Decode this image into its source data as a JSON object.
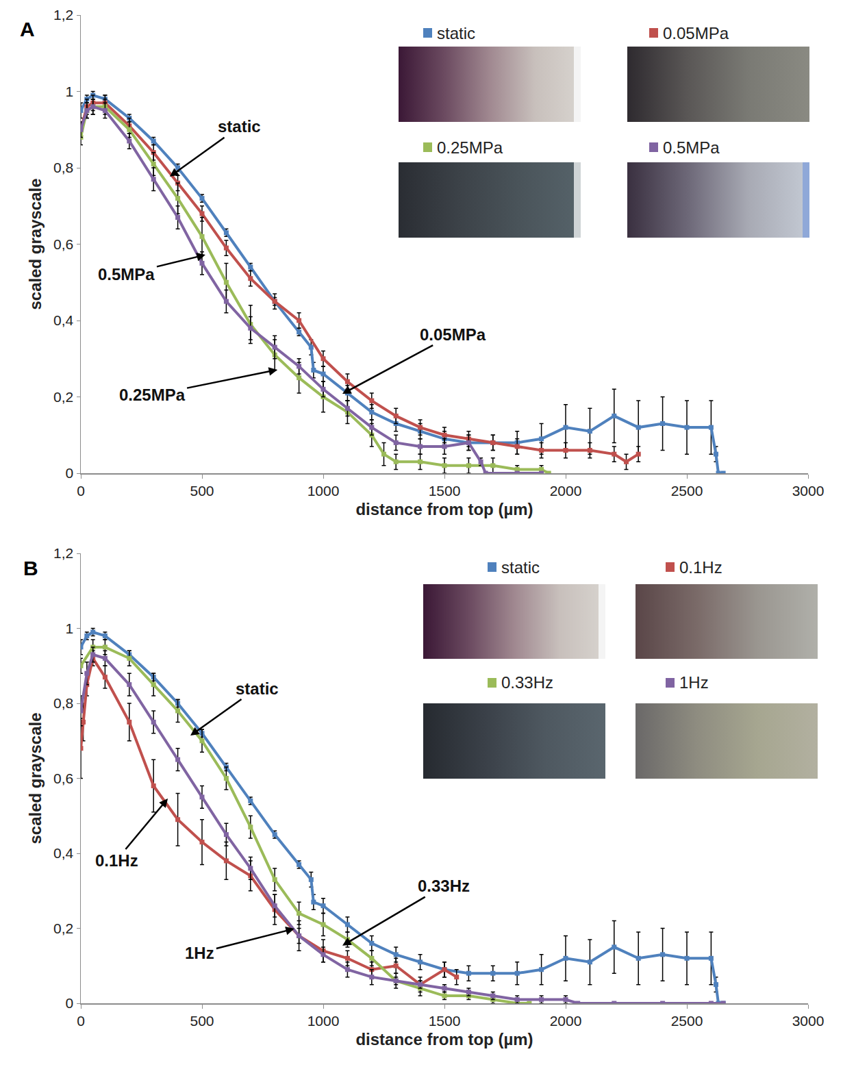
{
  "chart_data": [
    {
      "type": "line",
      "panel": "A",
      "x_label": "distance from top (µm)",
      "y_label": "scaled grayscale",
      "xlim": [
        0,
        3000
      ],
      "xticks": [
        0,
        500,
        1000,
        1500,
        2000,
        2500,
        3000
      ],
      "ylim": [
        0,
        1.2
      ],
      "yticks": [
        0,
        {
          "value": 0.2,
          "label": "0,2"
        },
        {
          "value": 0.4,
          "label": "0,4"
        },
        {
          "value": 0.6,
          "label": "0,6"
        },
        {
          "value": 0.8,
          "label": "0,8"
        },
        1,
        {
          "value": 1.2,
          "label": "1,2"
        }
      ],
      "grid": false,
      "legend": "top right",
      "series": [
        {
          "name": "static",
          "color": "#4f81bd",
          "marker": "square",
          "line_style": "solid",
          "x": [
            0,
            25,
            50,
            100,
            200,
            300,
            400,
            500,
            600,
            700,
            800,
            900,
            950,
            960,
            1000,
            1100,
            1200,
            1300,
            1400,
            1500,
            1600,
            1700,
            1800,
            1900,
            2000,
            2100,
            2200,
            2300,
            2400,
            2500,
            2600,
            2620,
            2630,
            2650
          ],
          "values": [
            0.95,
            0.98,
            0.99,
            0.98,
            0.93,
            0.87,
            0.8,
            0.72,
            0.63,
            0.54,
            0.45,
            0.37,
            0.33,
            0.27,
            0.26,
            0.21,
            0.16,
            0.13,
            0.11,
            0.09,
            0.08,
            0.08,
            0.08,
            0.09,
            0.12,
            0.11,
            0.15,
            0.12,
            0.13,
            0.12,
            0.12,
            0.05,
            0,
            0
          ],
          "errors": [
            0.02,
            0.01,
            0.01,
            0.01,
            0.01,
            0.01,
            0.01,
            0.01,
            0.01,
            0.01,
            0.01,
            0.01,
            0.02,
            0.02,
            0.02,
            0.02,
            0.02,
            0.02,
            0.02,
            0.02,
            0.02,
            0.02,
            0.03,
            0.04,
            0.06,
            0.06,
            0.07,
            0.07,
            0.07,
            0.07,
            0.07,
            0.02,
            0,
            0
          ]
        },
        {
          "name": "0.05MPa",
          "color": "#c0504d",
          "marker": "square",
          "line_style": "solid",
          "x": [
            0,
            25,
            50,
            100,
            200,
            300,
            400,
            500,
            600,
            700,
            800,
            900,
            1000,
            1100,
            1200,
            1300,
            1400,
            1500,
            1600,
            1700,
            1800,
            1900,
            2000,
            2100,
            2200,
            2250,
            2300
          ],
          "values": [
            0.9,
            0.96,
            0.97,
            0.97,
            0.91,
            0.84,
            0.76,
            0.68,
            0.59,
            0.51,
            0.45,
            0.4,
            0.3,
            0.24,
            0.19,
            0.15,
            0.12,
            0.1,
            0.09,
            0.08,
            0.07,
            0.06,
            0.06,
            0.06,
            0.05,
            0.03,
            0.05
          ],
          "errors": [
            0.02,
            0.02,
            0.02,
            0.02,
            0.02,
            0.02,
            0.02,
            0.02,
            0.02,
            0.02,
            0.02,
            0.02,
            0.02,
            0.02,
            0.02,
            0.02,
            0.02,
            0.02,
            0.02,
            0.02,
            0.02,
            0.02,
            0.02,
            0.02,
            0.02,
            0.02,
            0.02
          ]
        },
        {
          "name": "0.25MPa",
          "color": "#9bbb59",
          "marker": "square",
          "line_style": "solid",
          "x": [
            0,
            25,
            50,
            100,
            200,
            300,
            400,
            500,
            600,
            700,
            800,
            900,
            1000,
            1100,
            1200,
            1250,
            1300,
            1400,
            1500,
            1600,
            1700,
            1800,
            1900,
            1930
          ],
          "values": [
            0.88,
            0.95,
            0.96,
            0.96,
            0.9,
            0.81,
            0.72,
            0.62,
            0.5,
            0.39,
            0.31,
            0.25,
            0.2,
            0.16,
            0.1,
            0.05,
            0.03,
            0.03,
            0.02,
            0.02,
            0.02,
            0.01,
            0.01,
            0
          ],
          "errors": [
            0.02,
            0.02,
            0.02,
            0.02,
            0.02,
            0.03,
            0.04,
            0.05,
            0.05,
            0.05,
            0.04,
            0.04,
            0.04,
            0.03,
            0.03,
            0.03,
            0.02,
            0.02,
            0.02,
            0.02,
            0.02,
            0.01,
            0.01,
            0
          ]
        },
        {
          "name": "0.5MPa",
          "color": "#8064a2",
          "marker": "square",
          "line_style": "solid",
          "x": [
            0,
            25,
            50,
            100,
            200,
            300,
            400,
            500,
            600,
            700,
            800,
            900,
            1000,
            1100,
            1200,
            1300,
            1400,
            1500,
            1600,
            1650,
            1670,
            1800,
            1900
          ],
          "values": [
            0.9,
            0.95,
            0.96,
            0.95,
            0.87,
            0.77,
            0.67,
            0.55,
            0.45,
            0.38,
            0.33,
            0.28,
            0.22,
            0.17,
            0.12,
            0.08,
            0.07,
            0.07,
            0.08,
            0.03,
            0,
            0,
            0
          ],
          "errors": [
            0.02,
            0.02,
            0.02,
            0.02,
            0.02,
            0.03,
            0.03,
            0.03,
            0.03,
            0.03,
            0.03,
            0.02,
            0.02,
            0.02,
            0.02,
            0.02,
            0.02,
            0.02,
            0.02,
            0.01,
            0,
            0,
            0
          ]
        }
      ],
      "annotations": [
        {
          "text": "static",
          "x": 367,
          "y": 0.777
        },
        {
          "text": "0.5MPa",
          "x": 514,
          "y": 0.572
        },
        {
          "text": "0.25MPa",
          "x": 811,
          "y": 0.271
        },
        {
          "text": "0.05MPa",
          "x": 1079,
          "y": 0.208
        }
      ]
    },
    {
      "type": "line",
      "panel": "B",
      "x_label": "distance from top (µm)",
      "y_label": "scaled grayscale",
      "xlim": [
        0,
        3000
      ],
      "xticks": [
        0,
        500,
        1000,
        1500,
        2000,
        2500,
        3000
      ],
      "ylim": [
        0,
        1.2
      ],
      "yticks": [
        0,
        {
          "value": 0.2,
          "label": "0,2"
        },
        {
          "value": 0.4,
          "label": "0,4"
        },
        {
          "value": 0.6,
          "label": "0,6"
        },
        {
          "value": 0.8,
          "label": "0,8"
        },
        1,
        {
          "value": 1.2,
          "label": "1,2"
        }
      ],
      "grid": false,
      "legend": "top right",
      "series": [
        {
          "name": "static",
          "color": "#4f81bd",
          "marker": "square",
          "line_style": "solid",
          "x": [
            0,
            25,
            50,
            100,
            200,
            300,
            400,
            500,
            600,
            700,
            800,
            900,
            950,
            960,
            1000,
            1100,
            1200,
            1300,
            1400,
            1500,
            1600,
            1700,
            1800,
            1900,
            2000,
            2100,
            2200,
            2300,
            2400,
            2500,
            2600,
            2620,
            2630,
            2650
          ],
          "values": [
            0.95,
            0.98,
            0.99,
            0.98,
            0.93,
            0.87,
            0.8,
            0.72,
            0.63,
            0.54,
            0.45,
            0.37,
            0.33,
            0.27,
            0.26,
            0.21,
            0.16,
            0.13,
            0.11,
            0.09,
            0.08,
            0.08,
            0.08,
            0.09,
            0.12,
            0.11,
            0.15,
            0.12,
            0.13,
            0.12,
            0.12,
            0.05,
            0,
            0
          ],
          "errors": [
            0.02,
            0.01,
            0.01,
            0.01,
            0.01,
            0.01,
            0.01,
            0.01,
            0.01,
            0.01,
            0.01,
            0.01,
            0.02,
            0.02,
            0.02,
            0.02,
            0.02,
            0.02,
            0.02,
            0.02,
            0.02,
            0.02,
            0.03,
            0.04,
            0.06,
            0.06,
            0.07,
            0.07,
            0.07,
            0.07,
            0.07,
            0.02,
            0,
            0
          ]
        },
        {
          "name": "0.1Hz",
          "color": "#c0504d",
          "marker": "square",
          "line_style": "solid",
          "x": [
            0,
            10,
            25,
            50,
            100,
            200,
            300,
            400,
            500,
            600,
            700,
            800,
            900,
            1000,
            1100,
            1200,
            1300,
            1400,
            1500,
            1550
          ],
          "values": [
            0.68,
            0.75,
            0.85,
            0.92,
            0.87,
            0.75,
            0.58,
            0.49,
            0.43,
            0.38,
            0.34,
            0.25,
            0.18,
            0.14,
            0.12,
            0.09,
            0.1,
            0.05,
            0.09,
            0.07
          ],
          "errors": [
            0.08,
            0.05,
            0.03,
            0.02,
            0.03,
            0.05,
            0.07,
            0.07,
            0.06,
            0.05,
            0.04,
            0.04,
            0.04,
            0.03,
            0.02,
            0.02,
            0.02,
            0.02,
            0.02,
            0.02
          ]
        },
        {
          "name": "0.33Hz",
          "color": "#9bbb59",
          "marker": "square",
          "line_style": "solid",
          "x": [
            0,
            50,
            100,
            200,
            300,
            400,
            500,
            600,
            700,
            800,
            900,
            1000,
            1100,
            1200,
            1300,
            1400,
            1500,
            1600,
            1700,
            1800,
            1850
          ],
          "values": [
            0.9,
            0.95,
            0.95,
            0.92,
            0.85,
            0.78,
            0.7,
            0.6,
            0.47,
            0.33,
            0.24,
            0.21,
            0.17,
            0.12,
            0.06,
            0.04,
            0.02,
            0.02,
            0.01,
            0,
            0
          ],
          "errors": [
            0.02,
            0.02,
            0.02,
            0.02,
            0.03,
            0.03,
            0.03,
            0.03,
            0.03,
            0.03,
            0.03,
            0.03,
            0.02,
            0.02,
            0.02,
            0.02,
            0.01,
            0.01,
            0.01,
            0,
            0
          ]
        },
        {
          "name": "1Hz",
          "color": "#8064a2",
          "marker": "square",
          "line_style": "solid",
          "x": [
            0,
            25,
            50,
            100,
            200,
            300,
            400,
            500,
            600,
            700,
            800,
            900,
            1000,
            1100,
            1200,
            1300,
            1400,
            1500,
            1600,
            1700,
            1800,
            1900,
            2000,
            2050,
            2200,
            2400,
            2600,
            2650
          ],
          "values": [
            0.78,
            0.88,
            0.93,
            0.92,
            0.85,
            0.75,
            0.65,
            0.55,
            0.45,
            0.36,
            0.26,
            0.18,
            0.13,
            0.09,
            0.07,
            0.06,
            0.05,
            0.04,
            0.03,
            0.02,
            0.01,
            0.01,
            0.01,
            0,
            0,
            0,
            0,
            0
          ],
          "errors": [
            0.04,
            0.03,
            0.02,
            0.02,
            0.03,
            0.03,
            0.03,
            0.03,
            0.03,
            0.03,
            0.03,
            0.02,
            0.02,
            0.02,
            0.02,
            0.01,
            0.01,
            0.01,
            0.01,
            0.01,
            0.01,
            0.01,
            0.01,
            0,
            0,
            0,
            0,
            0
          ]
        }
      ],
      "annotations": [
        {
          "text": "static",
          "x": 452,
          "y": 0.714
        },
        {
          "text": "0.1Hz",
          "x": 359,
          "y": 0.546
        },
        {
          "text": "0.33Hz",
          "x": 1079,
          "y": 0.154
        },
        {
          "text": "1Hz",
          "x": 881,
          "y": 0.199
        }
      ]
    }
  ]
}
